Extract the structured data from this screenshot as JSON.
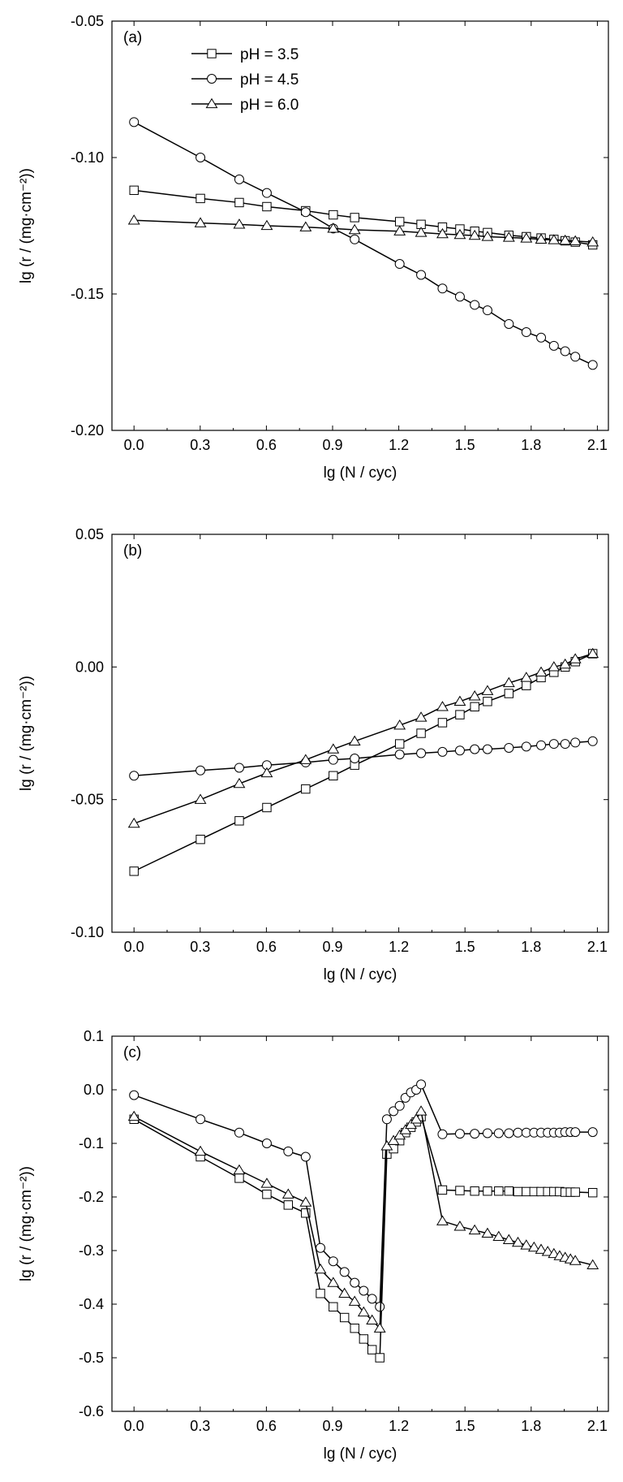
{
  "chart_data": [
    {
      "type": "line",
      "panel_label": "(a)",
      "xlabel": "lg (N / cyc)",
      "ylabel": "lg (r / (mg·cm⁻²))",
      "xlim": [
        -0.1,
        2.15
      ],
      "ylim": [
        -0.2,
        -0.05
      ],
      "xticks": [
        "0.0",
        "0.3",
        "0.6",
        "0.9",
        "1.2",
        "1.5",
        "1.8",
        "2.1"
      ],
      "yticks": [
        "-0.05",
        "-0.10",
        "-0.15",
        "-0.20"
      ],
      "legend": {
        "placement": "top-left"
      },
      "series": [
        {
          "name": "pH = 3.5",
          "marker": "square",
          "x": [
            0.0,
            0.301,
            0.477,
            0.602,
            0.778,
            0.903,
            1.0,
            1.204,
            1.301,
            1.398,
            1.477,
            1.544,
            1.602,
            1.699,
            1.778,
            1.845,
            1.903,
            1.954,
            2.0,
            2.079
          ],
          "y": [
            -0.112,
            -0.115,
            -0.1165,
            -0.118,
            -0.1195,
            -0.121,
            -0.122,
            -0.1235,
            -0.1245,
            -0.1255,
            -0.1262,
            -0.127,
            -0.1275,
            -0.1285,
            -0.129,
            -0.1295,
            -0.13,
            -0.1305,
            -0.131,
            -0.132
          ]
        },
        {
          "name": "pH = 4.5",
          "marker": "circle",
          "x": [
            0.0,
            0.301,
            0.477,
            0.602,
            0.778,
            0.903,
            1.0,
            1.204,
            1.301,
            1.398,
            1.477,
            1.544,
            1.602,
            1.699,
            1.778,
            1.845,
            1.903,
            1.954,
            2.0,
            2.079
          ],
          "y": [
            -0.087,
            -0.1,
            -0.108,
            -0.113,
            -0.12,
            -0.126,
            -0.13,
            -0.139,
            -0.143,
            -0.148,
            -0.151,
            -0.154,
            -0.156,
            -0.161,
            -0.164,
            -0.166,
            -0.169,
            -0.171,
            -0.173,
            -0.176
          ]
        },
        {
          "name": "pH = 6.0",
          "marker": "triangle",
          "x": [
            0.0,
            0.301,
            0.477,
            0.602,
            0.778,
            0.903,
            1.0,
            1.204,
            1.301,
            1.398,
            1.477,
            1.544,
            1.602,
            1.699,
            1.778,
            1.845,
            1.903,
            1.954,
            2.0,
            2.079
          ],
          "y": [
            -0.123,
            -0.124,
            -0.1245,
            -0.125,
            -0.1255,
            -0.126,
            -0.1265,
            -0.127,
            -0.1275,
            -0.128,
            -0.1283,
            -0.1286,
            -0.129,
            -0.1293,
            -0.1296,
            -0.13,
            -0.1302,
            -0.1304,
            -0.1306,
            -0.131
          ]
        }
      ]
    },
    {
      "type": "line",
      "panel_label": "(b)",
      "xlabel": "lg (N / cyc)",
      "ylabel": "lg (r / (mg·cm⁻²))",
      "xlim": [
        -0.1,
        2.15
      ],
      "ylim": [
        -0.1,
        0.05
      ],
      "xticks": [
        "0.0",
        "0.3",
        "0.6",
        "0.9",
        "1.2",
        "1.5",
        "1.8",
        "2.1"
      ],
      "yticks": [
        "0.05",
        "0.00",
        "-0.05",
        "-0.10"
      ],
      "series": [
        {
          "name": "pH = 3.5",
          "marker": "square",
          "x": [
            0.0,
            0.301,
            0.477,
            0.602,
            0.778,
            0.903,
            1.0,
            1.204,
            1.301,
            1.398,
            1.477,
            1.544,
            1.602,
            1.699,
            1.778,
            1.845,
            1.903,
            1.954,
            2.0,
            2.079
          ],
          "y": [
            -0.077,
            -0.065,
            -0.058,
            -0.053,
            -0.046,
            -0.041,
            -0.037,
            -0.029,
            -0.025,
            -0.021,
            -0.018,
            -0.015,
            -0.013,
            -0.01,
            -0.007,
            -0.004,
            -0.002,
            0.0,
            0.002,
            0.005
          ]
        },
        {
          "name": "pH = 4.5",
          "marker": "circle",
          "x": [
            0.0,
            0.301,
            0.477,
            0.602,
            0.778,
            0.903,
            1.0,
            1.204,
            1.301,
            1.398,
            1.477,
            1.544,
            1.602,
            1.699,
            1.778,
            1.845,
            1.903,
            1.954,
            2.0,
            2.079
          ],
          "y": [
            -0.041,
            -0.039,
            -0.038,
            -0.037,
            -0.036,
            -0.035,
            -0.0345,
            -0.033,
            -0.0325,
            -0.032,
            -0.0315,
            -0.031,
            -0.031,
            -0.0305,
            -0.03,
            -0.0295,
            -0.029,
            -0.029,
            -0.0285,
            -0.028
          ]
        },
        {
          "name": "pH = 6.0",
          "marker": "triangle",
          "x": [
            0.0,
            0.301,
            0.477,
            0.602,
            0.778,
            0.903,
            1.0,
            1.204,
            1.301,
            1.398,
            1.477,
            1.544,
            1.602,
            1.699,
            1.778,
            1.845,
            1.903,
            1.954,
            2.0,
            2.079
          ],
          "y": [
            -0.059,
            -0.05,
            -0.044,
            -0.04,
            -0.035,
            -0.031,
            -0.028,
            -0.022,
            -0.019,
            -0.015,
            -0.013,
            -0.011,
            -0.009,
            -0.006,
            -0.004,
            -0.002,
            0.0,
            0.001,
            0.003,
            0.005
          ]
        }
      ]
    },
    {
      "type": "line",
      "panel_label": "(c)",
      "xlabel": "lg (N / cyc)",
      "ylabel": "lg (r / (mg·cm⁻²))",
      "xlim": [
        -0.1,
        2.15
      ],
      "ylim": [
        -0.6,
        0.1
      ],
      "xticks": [
        "0.0",
        "0.3",
        "0.6",
        "0.9",
        "1.2",
        "1.5",
        "1.8",
        "2.1"
      ],
      "yticks": [
        "0.1",
        "0.0",
        "-0.1",
        "-0.2",
        "-0.3",
        "-0.4",
        "-0.5",
        "-0.6"
      ],
      "series": [
        {
          "name": "pH = 3.5",
          "marker": "square",
          "x": [
            0.0,
            0.301,
            0.477,
            0.602,
            0.699,
            0.778,
            0.845,
            0.903,
            0.954,
            1.0,
            1.041,
            1.079,
            1.114,
            1.146,
            1.176,
            1.204,
            1.23,
            1.255,
            1.279,
            1.301,
            1.398,
            1.477,
            1.544,
            1.602,
            1.653,
            1.699,
            1.74,
            1.778,
            1.813,
            1.845,
            1.875,
            1.903,
            1.929,
            1.954,
            1.978,
            2.0,
            2.079
          ],
          "y": [
            -0.055,
            -0.125,
            -0.165,
            -0.195,
            -0.215,
            -0.23,
            -0.38,
            -0.405,
            -0.425,
            -0.445,
            -0.465,
            -0.485,
            -0.5,
            -0.12,
            -0.11,
            -0.095,
            -0.08,
            -0.07,
            -0.06,
            -0.05,
            -0.187,
            -0.188,
            -0.189,
            -0.189,
            -0.189,
            -0.189,
            -0.19,
            -0.19,
            -0.19,
            -0.19,
            -0.19,
            -0.19,
            -0.19,
            -0.191,
            -0.191,
            -0.191,
            -0.192
          ]
        },
        {
          "name": "pH = 4.5",
          "marker": "circle",
          "x": [
            0.0,
            0.301,
            0.477,
            0.602,
            0.699,
            0.778,
            0.845,
            0.903,
            0.954,
            1.0,
            1.041,
            1.079,
            1.114,
            1.146,
            1.176,
            1.204,
            1.23,
            1.255,
            1.279,
            1.301,
            1.398,
            1.477,
            1.544,
            1.602,
            1.653,
            1.699,
            1.74,
            1.778,
            1.813,
            1.845,
            1.875,
            1.903,
            1.929,
            1.954,
            1.978,
            2.0,
            2.079
          ],
          "y": [
            -0.01,
            -0.055,
            -0.08,
            -0.1,
            -0.115,
            -0.125,
            -0.295,
            -0.32,
            -0.34,
            -0.36,
            -0.375,
            -0.39,
            -0.405,
            -0.055,
            -0.04,
            -0.03,
            -0.015,
            -0.005,
            0.0,
            0.01,
            -0.083,
            -0.082,
            -0.082,
            -0.081,
            -0.081,
            -0.081,
            -0.08,
            -0.08,
            -0.08,
            -0.08,
            -0.08,
            -0.08,
            -0.08,
            -0.079,
            -0.079,
            -0.079,
            -0.079
          ]
        },
        {
          "name": "pH = 6.0",
          "marker": "triangle",
          "x": [
            0.0,
            0.301,
            0.477,
            0.602,
            0.699,
            0.778,
            0.845,
            0.903,
            0.954,
            1.0,
            1.041,
            1.079,
            1.114,
            1.146,
            1.176,
            1.204,
            1.23,
            1.255,
            1.279,
            1.301,
            1.398,
            1.477,
            1.544,
            1.602,
            1.653,
            1.699,
            1.74,
            1.778,
            1.813,
            1.845,
            1.875,
            1.903,
            1.929,
            1.954,
            1.978,
            2.0,
            2.079
          ],
          "y": [
            -0.05,
            -0.115,
            -0.15,
            -0.175,
            -0.195,
            -0.21,
            -0.335,
            -0.36,
            -0.38,
            -0.395,
            -0.415,
            -0.43,
            -0.445,
            -0.105,
            -0.095,
            -0.085,
            -0.075,
            -0.065,
            -0.055,
            -0.04,
            -0.245,
            -0.255,
            -0.262,
            -0.268,
            -0.274,
            -0.28,
            -0.285,
            -0.29,
            -0.294,
            -0.298,
            -0.302,
            -0.306,
            -0.31,
            -0.313,
            -0.316,
            -0.319,
            -0.327
          ]
        }
      ]
    }
  ]
}
